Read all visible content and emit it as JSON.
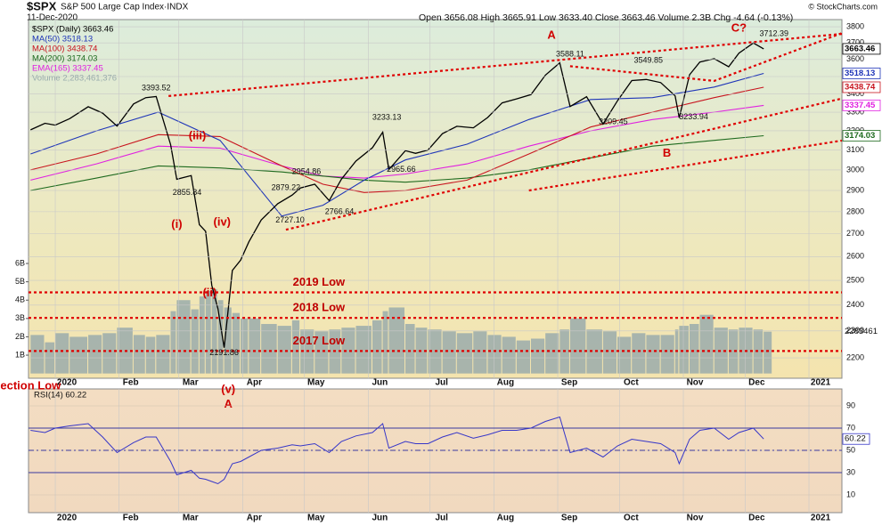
{
  "chart_data": [
    {
      "type": "line",
      "title": "$SPX",
      "subtitle": "S&P 500 Large Cap Index·INDX",
      "date": "11-Dec-2020",
      "quote": "Open 3656.08 High 3665.91 Low 3633.40 Close 3663.46 Volume 2.3B Chg -4.64 (-0.13%)",
      "source": "© StockCharts.com",
      "volume_tag": "2283461",
      "log": true,
      "grid": true,
      "xlim": [
        -13,
        382
      ],
      "xticks": [
        {
          "value": 0,
          "label": "2020"
        },
        {
          "value": 31,
          "label": "Feb"
        },
        {
          "value": 60,
          "label": "Mar"
        },
        {
          "value": 91,
          "label": "Apr"
        },
        {
          "value": 121,
          "label": "May"
        },
        {
          "value": 152,
          "label": "Jun"
        },
        {
          "value": 182,
          "label": "Jul"
        },
        {
          "value": 213,
          "label": "Aug"
        },
        {
          "value": 244,
          "label": "Sep"
        },
        {
          "value": 274,
          "label": "Oct"
        },
        {
          "value": 305,
          "label": "Nov"
        },
        {
          "value": 335,
          "label": "Dec"
        },
        {
          "value": 366,
          "label": "2021"
        }
      ],
      "ylim": [
        2127,
        3845
      ],
      "yticks": [
        2200,
        2300,
        2400,
        2500,
        2600,
        2700,
        2800,
        2900,
        3000,
        3100,
        3200,
        3300,
        3400,
        3500,
        3600,
        3700,
        3800
      ],
      "y2lim": [
        -0.26,
        19.3
      ],
      "y2ticks": [
        {
          "value": 1,
          "label": "1B"
        },
        {
          "value": 2,
          "label": "2B"
        },
        {
          "value": 3,
          "label": "3B"
        },
        {
          "value": 4,
          "label": "4B"
        },
        {
          "value": 5,
          "label": "5B"
        },
        {
          "value": 6,
          "label": "6B"
        }
      ],
      "x": [
        -12,
        -5,
        0,
        7,
        16,
        23,
        30,
        38,
        44,
        49,
        56,
        59,
        66,
        70,
        73,
        76,
        79,
        82,
        86,
        90,
        94,
        100,
        108,
        115,
        119,
        126,
        133,
        139,
        146,
        154,
        159,
        162,
        170,
        175,
        181,
        188,
        195,
        203,
        210,
        217,
        224,
        231,
        238,
        245,
        250,
        258,
        266,
        273,
        280,
        287,
        294,
        301,
        303,
        308,
        313,
        320,
        327,
        332,
        339,
        344
      ],
      "series": [
        {
          "name": "$SPX (Daily) 3663.46",
          "color": "#000000",
          "values": [
            3205,
            3240,
            3230,
            3265,
            3330,
            3295,
            3225,
            3345,
            3380,
            3386,
            3128,
            2954,
            2972,
            2741,
            2711,
            2480,
            2386,
            2237,
            2541,
            2585,
            2664,
            2762,
            2837,
            2878,
            2912,
            2930,
            2852,
            2955,
            3044,
            3112,
            3193,
            3002,
            3097,
            3083,
            3100,
            3185,
            3224,
            3216,
            3271,
            3351,
            3373,
            3397,
            3508,
            3580,
            3331,
            3385,
            3236,
            3363,
            3477,
            3483,
            3465,
            3390,
            3270,
            3510,
            3585,
            3605,
            3557,
            3638,
            3699,
            3663.46
          ]
        },
        {
          "name": "MA(50) 3518.13",
          "color": "#1f35b8",
          "x": [
            -12,
            20,
            50,
            80,
            110,
            130,
            150,
            170,
            200,
            230,
            260,
            290,
            320,
            344
          ],
          "values": [
            3080,
            3200,
            3300,
            3150,
            2780,
            2830,
            2950,
            3050,
            3130,
            3260,
            3370,
            3380,
            3440,
            3518.13
          ]
        },
        {
          "name": "MA(100) 3438.74",
          "color": "#c8141e",
          "x": [
            -12,
            20,
            50,
            80,
            110,
            130,
            150,
            170,
            200,
            230,
            260,
            290,
            320,
            344
          ],
          "values": [
            3000,
            3080,
            3180,
            3170,
            3020,
            2930,
            2890,
            2900,
            2950,
            3080,
            3220,
            3300,
            3380,
            3438.74
          ]
        },
        {
          "name": "MA(200) 3174.03",
          "color": "#1e6a1e",
          "x": [
            -12,
            20,
            50,
            80,
            110,
            130,
            150,
            170,
            200,
            230,
            260,
            290,
            320,
            344
          ],
          "values": [
            2900,
            2960,
            3020,
            3010,
            2990,
            2970,
            2950,
            2940,
            2960,
            3000,
            3060,
            3120,
            3150,
            3174.03
          ]
        },
        {
          "name": "EMA(165) 3337.45",
          "color": "#e020e0",
          "x": [
            -12,
            20,
            50,
            80,
            110,
            130,
            150,
            170,
            200,
            230,
            260,
            290,
            320,
            344
          ],
          "values": [
            2950,
            3030,
            3120,
            3110,
            3020,
            2970,
            2960,
            2980,
            3030,
            3120,
            3200,
            3260,
            3300,
            3337.45
          ]
        },
        {
          "name": "Volume 2,283,461,376",
          "color": "#9aacac",
          "type": "bar",
          "axis": "y2",
          "values": [
            2.1,
            1.7,
            2.2,
            2.0,
            2.1,
            2.2,
            2.5,
            2.1,
            2.0,
            2.1,
            3.4,
            4.0,
            3.5,
            4.2,
            4.5,
            4.6,
            4.0,
            3.6,
            3.3,
            3.0,
            3.0,
            2.7,
            2.6,
            2.9,
            2.4,
            2.3,
            2.4,
            2.5,
            2.6,
            2.9,
            3.4,
            3.6,
            2.7,
            2.5,
            2.4,
            2.3,
            2.2,
            2.3,
            2.1,
            2.0,
            1.8,
            1.9,
            2.2,
            2.4,
            3.0,
            2.4,
            2.3,
            2.0,
            2.2,
            2.1,
            2.1,
            2.4,
            2.6,
            2.7,
            3.2,
            2.5,
            2.4,
            2.5,
            2.4,
            2.28
          ]
        }
      ],
      "hlines": [
        {
          "label": "2019 Low",
          "value": 2451,
          "x": 128
        },
        {
          "label": "2018 Low",
          "value": 2350,
          "x": 128
        },
        {
          "label": "2017 Low",
          "value": 2225,
          "x": 128
        }
      ],
      "trendlines": [
        {
          "x": [
            55,
            382
          ],
          "y": [
            3389,
            3755
          ]
        },
        {
          "x": [
            112,
            382
          ],
          "y": [
            2718,
            3375
          ]
        },
        {
          "x": [
            230,
            382
          ],
          "y": [
            2900,
            3149
          ]
        },
        {
          "x": [
            250,
            320,
            382
          ],
          "y": [
            3560,
            3475,
            3760
          ]
        }
      ],
      "price_labels": [
        {
          "x": 49,
          "value": 3393.52
        },
        {
          "x": 64,
          "value": 2855.84
        },
        {
          "x": 82,
          "value": 2191.86
        },
        {
          "x": 112,
          "value": 2879.22
        },
        {
          "x": 122,
          "value": 2954.86
        },
        {
          "x": 114,
          "value": 2727.1,
          "label": "2727.10"
        },
        {
          "x": 138,
          "value": 2766.64
        },
        {
          "x": 161,
          "value": 3233.13
        },
        {
          "x": 168,
          "value": 2965.66
        },
        {
          "x": 250,
          "value": 3588.11
        },
        {
          "x": 288,
          "value": 3549.85
        },
        {
          "x": 271,
          "value": 3209.45
        },
        {
          "x": 310,
          "value": 3233.94
        },
        {
          "x": 349,
          "value": 3712.39
        }
      ],
      "wave_labels": [
        {
          "text": "A",
          "x": 241,
          "y": 3745
        },
        {
          "text": "C?",
          "x": 332,
          "y": 3789
        },
        {
          "text": "B",
          "x": 297,
          "y": 3081
        },
        {
          "text": "(i)",
          "x": 59,
          "y": 2740
        },
        {
          "text": "(iii)",
          "x": 69,
          "y": 3171
        },
        {
          "text": "(ii)",
          "x": 75,
          "y": 2447
        },
        {
          "text": "(iv)",
          "x": 81,
          "y": 2750
        },
        {
          "text": "(v)",
          "x": 84,
          "y": 2086
        },
        {
          "text": "A",
          "x": 84,
          "y": 2037
        },
        {
          "text": "ection Low",
          "x": -12,
          "y": 2099
        }
      ]
    },
    {
      "type": "line",
      "x": [
        -12,
        -5,
        0,
        7,
        16,
        23,
        30,
        38,
        44,
        49,
        56,
        59,
        66,
        70,
        73,
        76,
        79,
        82,
        86,
        90,
        94,
        100,
        108,
        115,
        119,
        126,
        133,
        139,
        146,
        154,
        159,
        162,
        170,
        175,
        181,
        188,
        195,
        203,
        210,
        217,
        224,
        231,
        238,
        245,
        250,
        258,
        266,
        273,
        280,
        287,
        294,
        301,
        303,
        308,
        313,
        320,
        327,
        332,
        339,
        344
      ],
      "ylim": [
        -6,
        105.2
      ],
      "yticks": [
        10,
        30,
        50,
        70,
        90
      ],
      "bands": [
        30,
        70
      ],
      "midline": 50,
      "series": [
        {
          "name": "RSI(14) 60.22",
          "color": "#3636c8",
          "values": [
            68,
            66,
            70,
            72,
            74,
            62,
            48,
            57,
            62,
            62,
            40,
            28,
            32,
            25,
            24,
            22,
            20,
            24,
            38,
            40,
            44,
            50,
            52,
            55,
            54,
            56,
            48,
            58,
            63,
            66,
            74,
            52,
            58,
            56,
            56,
            62,
            66,
            61,
            64,
            68,
            68,
            70,
            76,
            80,
            48,
            52,
            44,
            54,
            60,
            58,
            56,
            48,
            38,
            60,
            68,
            70,
            60,
            66,
            70,
            60.22
          ]
        }
      ]
    }
  ]
}
